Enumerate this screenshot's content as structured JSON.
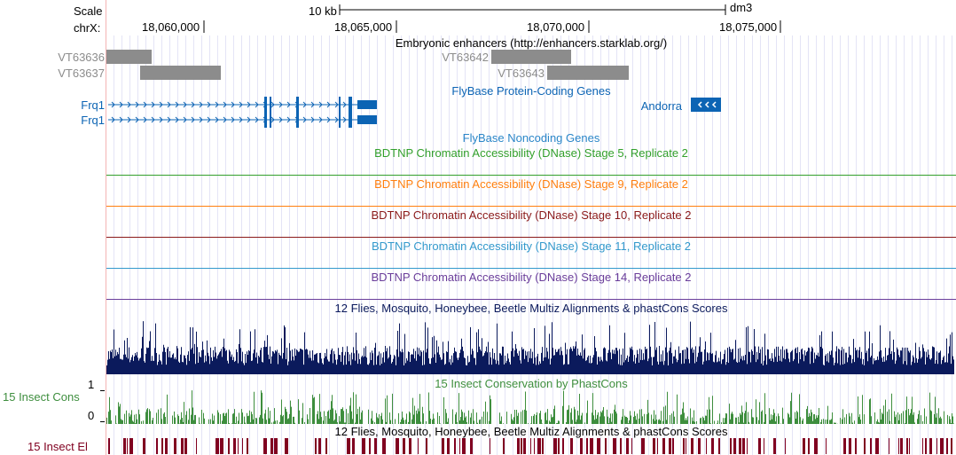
{
  "scale": {
    "label": "Scale",
    "size_label": "10 kb",
    "assembly": "dm3"
  },
  "position": {
    "chrom_label": "chrX:",
    "ticks": [
      "18,060,000",
      "18,065,000",
      "18,070,000",
      "18,075,000"
    ]
  },
  "tracks": {
    "enhancers": {
      "title": "Embryonic enhancers (http://enhancers.starklab.org/)",
      "items": [
        "VT63636",
        "VT63637",
        "VT63642",
        "VT63643"
      ],
      "color": "#8c8c8c"
    },
    "protein_coding": {
      "title": "FlyBase Protein-Coding Genes",
      "genes": [
        "Frq1",
        "Frq1",
        "Andorra"
      ],
      "color": "#0c64b4"
    },
    "noncoding": {
      "title": "FlyBase Noncoding Genes",
      "color": "#2a86c8"
    },
    "dnase": [
      {
        "title": "BDTNP Chromatin Accessibility (DNase) Stage 5, Replicate 2",
        "color": "#33a02c"
      },
      {
        "title": "BDTNP Chromatin Accessibility (DNase) Stage 9, Replicate 2",
        "color": "#ff7f0e"
      },
      {
        "title": "BDTNP Chromatin Accessibility (DNase) Stage 10, Replicate 2",
        "color": "#8b1a1a"
      },
      {
        "title": "BDTNP Chromatin Accessibility (DNase) Stage 11, Replicate 2",
        "color": "#3399cc"
      },
      {
        "title": "BDTNP Chromatin Accessibility (DNase) Stage 14, Replicate 2",
        "color": "#6a3d9a"
      }
    ],
    "multiz": {
      "title": "12 Flies, Mosquito, Honeybee, Beetle Multiz Alignments & phastCons Scores",
      "color": "#0b1a5c"
    },
    "cons15": {
      "title": "15 Insect Conservation by PhastCons",
      "label": "15 Insect Cons",
      "axis_max": "1",
      "axis_min": "0",
      "color": "#3e8e3e"
    },
    "elements": {
      "title": "12 Flies, Mosquito, Honeybee, Beetle Multiz Alignments & phastCons Scores",
      "label": "15 Insect El",
      "color": "#800020"
    }
  }
}
